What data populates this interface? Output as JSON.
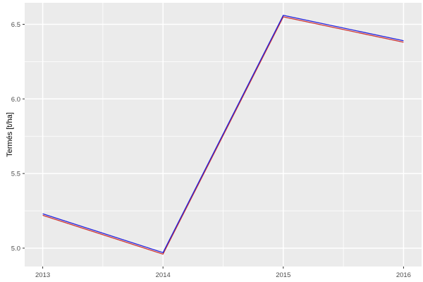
{
  "figure": {
    "background": "#FFFFFF"
  },
  "chart_data": {
    "type": "line",
    "title": "",
    "xlabel": "",
    "ylabel": "Termés [t/ha]",
    "x": [
      2013,
      2014,
      2015,
      2016
    ],
    "series": [
      {
        "name": "red-series",
        "color": "#CC3333",
        "values": [
          5.22,
          4.96,
          6.55,
          6.38
        ]
      },
      {
        "name": "blue-series",
        "color": "#2121DC",
        "values": [
          5.23,
          4.97,
          6.56,
          6.39
        ]
      }
    ],
    "xlim": [
      2012.85,
      2016.15
    ],
    "ylim": [
      4.877,
      6.644
    ],
    "xticks": [
      2013,
      2014,
      2015,
      2016
    ],
    "xtick_labels": [
      "2013",
      "2014",
      "2015",
      "2016"
    ],
    "yticks": [
      5.0,
      5.5,
      6.0,
      6.5
    ],
    "ytick_labels": [
      "5.0",
      "5.5",
      "6.0",
      "6.5"
    ],
    "xminor": [
      2013.5,
      2014.5,
      2015.5
    ],
    "yminor": [
      5.25,
      5.75,
      6.25
    ],
    "grid": true,
    "legend": "none",
    "panel_background": "#EBEBEB",
    "grid_color": "#FFFFFF",
    "tick_color": "#333333",
    "tick_label_color": "#4D4D4D"
  }
}
